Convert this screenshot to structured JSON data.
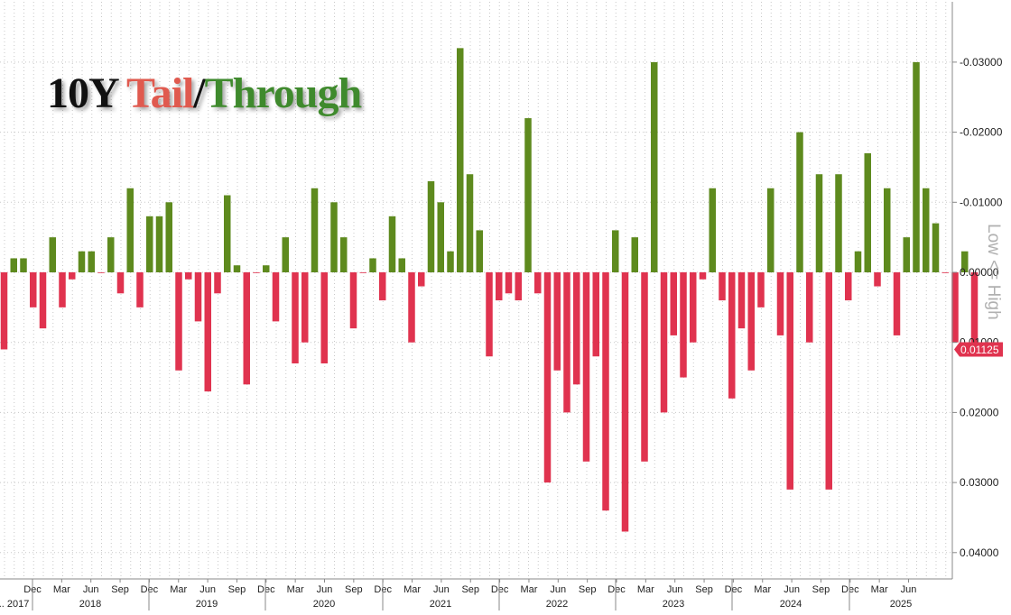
{
  "chart_data": {
    "type": "bar",
    "title_parts": [
      "10Y ",
      "Tail",
      "/",
      "Through"
    ],
    "side_label": "Low <= High",
    "reversed_y": true,
    "ylim": [
      -0.034,
      0.043
    ],
    "yticks": [
      -0.03,
      -0.02,
      -0.01,
      0.0,
      0.01,
      0.02,
      0.03,
      0.04
    ],
    "ytick_labels": [
      "-0.03000",
      "-0.02000",
      "-0.01000",
      "0.00000",
      "0.01000",
      "0.02000",
      "0.03000",
      "0.04000"
    ],
    "last_value_label": "0.01125",
    "x_month_labels": [
      "Dec",
      "Mar",
      "Jun",
      "Sep",
      "Dec",
      "Mar",
      "Jun",
      "Sep",
      "Dec",
      "Mar",
      "Jun",
      "Sep",
      "Dec",
      "Mar",
      "Jun",
      "Sep",
      "Dec",
      "Mar",
      "Jun",
      "Sep",
      "Dec",
      "Mar",
      "Jun",
      "Sep",
      "Dec",
      "Mar",
      "Jun",
      "Sep",
      "Dec",
      "Mar",
      "Jun"
    ],
    "x_year_labels": [
      "... 2017",
      "2018",
      "2019",
      "2020",
      "2021",
      "2022",
      "2023",
      "2024",
      "2025"
    ],
    "values": [
      0.011,
      -0.002,
      -0.002,
      0.005,
      0.008,
      -0.005,
      0.005,
      0.001,
      -0.003,
      -0.003,
      0.0,
      -0.005,
      0.003,
      -0.012,
      0.005,
      -0.008,
      -0.008,
      -0.01,
      0.014,
      0.001,
      0.007,
      0.017,
      0.003,
      -0.011,
      -0.001,
      0.016,
      0.0,
      -0.001,
      0.007,
      -0.005,
      0.013,
      0.01,
      -0.012,
      0.013,
      -0.01,
      -0.005,
      0.008,
      0.0,
      -0.002,
      0.004,
      -0.008,
      -0.002,
      0.01,
      0.002,
      -0.013,
      -0.01,
      -0.003,
      -0.032,
      -0.014,
      -0.006,
      0.012,
      0.004,
      0.003,
      0.004,
      -0.022,
      0.003,
      0.03,
      0.014,
      0.02,
      0.016,
      0.027,
      0.012,
      0.034,
      -0.006,
      0.037,
      -0.005,
      0.027,
      -0.03,
      0.02,
      0.009,
      0.015,
      0.01,
      0.001,
      -0.012,
      0.004,
      0.018,
      0.008,
      0.014,
      0.005,
      -0.012,
      0.009,
      0.031,
      -0.02,
      0.01,
      -0.014,
      0.031,
      -0.014,
      0.004,
      -0.003,
      -0.017,
      0.002,
      -0.012,
      0.009,
      -0.005,
      -0.03,
      -0.012,
      -0.007,
      0.0,
      0.01,
      -0.003,
      0.011
    ],
    "colors": {
      "positive": "#e0334f",
      "negative": "#5e8a1e",
      "grid": "#c8c8c8",
      "axis": "#888888"
    },
    "grid": true
  }
}
